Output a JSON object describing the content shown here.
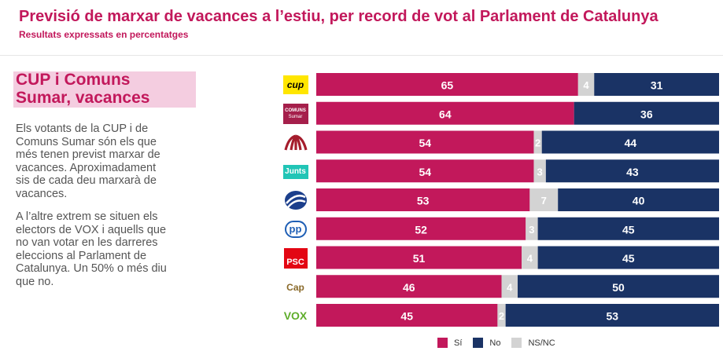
{
  "header": {
    "title": "Previsió de marxar de vacances a l’estiu, per record de vot al Parlament de Catalunya",
    "subtitle": "Resultats expressats en percentatges"
  },
  "sidebar": {
    "headline_line1": "CUP i Comuns",
    "headline_line2": "Sumar, vacances",
    "para1": [
      "Els votants de la CUP i de",
      "Comuns Sumar són els que",
      "més tenen previst marxar de",
      "vacances. Aproximadament",
      "sis de cada deu marxarà de",
      "vacances."
    ],
    "para2": [
      "A l’altre extrem se situen els",
      "electors de VOX i aquells que",
      "no van votar en les darreres",
      "eleccions al Parlament de",
      "Catalunya. Un 50% o més diu",
      "que no."
    ]
  },
  "logos": {
    "cup": "cup",
    "comuns_line1": "COMUNS",
    "comuns_line2": "Sumar",
    "junts": "Junts",
    "pp": "pp",
    "psc": "PSC",
    "cap": "Cap",
    "vox": "VOX"
  },
  "colors": {
    "si": "#c2185b",
    "no": "#1a3365",
    "nsnc": "#d3d3d3"
  },
  "chart_data": {
    "type": "bar",
    "orientation": "horizontal-stacked-100",
    "categories": [
      "CUP",
      "Comuns Sumar",
      "ERC",
      "Junts",
      "Aliança Catalana",
      "PP",
      "PSC",
      "Cap",
      "VOX"
    ],
    "series": [
      {
        "name": "Sí",
        "values": [
          65,
          64,
          54,
          54,
          53,
          52,
          51,
          46,
          45
        ]
      },
      {
        "name": "NS/NC",
        "values": [
          4,
          null,
          2,
          3,
          7,
          3,
          4,
          4,
          2
        ]
      },
      {
        "name": "No",
        "values": [
          31,
          36,
          44,
          43,
          40,
          45,
          45,
          50,
          53
        ]
      }
    ],
    "legend": [
      "Sí",
      "No",
      "NS/NC"
    ],
    "legend_position": "bottom",
    "xlim": [
      0,
      100
    ]
  }
}
